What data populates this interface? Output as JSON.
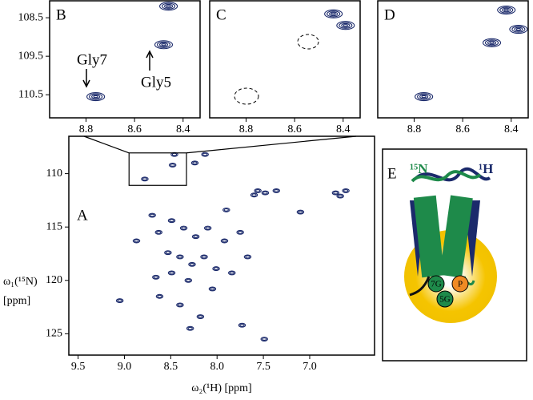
{
  "chart_data": [
    {
      "type": "scatter",
      "label": "A",
      "color": "#1b2a6b",
      "xlabel": "ω₂(¹H) [ppm]",
      "ylabel": [
        "ω₁(¹⁵N)",
        "[ppm]"
      ],
      "xlim": [
        9.6,
        6.3
      ],
      "ylim": [
        106.5,
        127.0
      ],
      "xticks": [
        9.5,
        {
          "value": 9,
          "label": "9.0"
        },
        8.5,
        {
          "value": 8,
          "label": "8.0"
        },
        7.5,
        {
          "value": 7,
          "label": "7.0"
        }
      ],
      "yticks": [
        110,
        115,
        120,
        125
      ],
      "x": [
        8.78,
        8.48,
        8.46,
        8.24,
        8.13,
        7.56,
        7.48,
        7.36,
        7.6,
        6.72,
        6.61,
        6.67,
        7.1,
        8.63,
        8.49,
        8.36,
        8.23,
        8.1,
        7.92,
        7.75,
        8.53,
        8.4,
        8.27,
        8.14,
        8.01,
        8.66,
        8.49,
        8.31,
        8.05,
        8.62,
        9.05,
        8.4,
        8.18,
        7.73,
        7.49,
        8.29,
        7.9,
        8.7,
        8.87,
        7.84,
        7.67
      ],
      "y": [
        110.5,
        109.2,
        108.2,
        109.0,
        108.2,
        111.6,
        111.8,
        111.6,
        112.0,
        111.8,
        111.6,
        112.1,
        113.6,
        115.5,
        114.4,
        115.1,
        115.9,
        115.1,
        116.3,
        115.5,
        117.4,
        117.8,
        118.5,
        117.8,
        118.9,
        119.7,
        119.3,
        120.0,
        120.8,
        121.5,
        121.9,
        122.3,
        123.4,
        124.2,
        125.5,
        124.5,
        113.4,
        113.9,
        116.3,
        119.3,
        117.8
      ]
    },
    {
      "type": "scatter",
      "label": "B",
      "color": "#1b2a6b",
      "xlim": [
        8.95,
        8.33
      ],
      "ylim": [
        108.06,
        111.1
      ],
      "xticks": [
        8.8,
        8.6,
        8.4
      ],
      "yticks": [
        108.5,
        109.5,
        110.5
      ],
      "x": [
        8.46,
        8.48,
        8.76
      ],
      "y": [
        108.2,
        109.2,
        110.55
      ],
      "annotations": [
        "Gly7",
        "Gly5"
      ]
    },
    {
      "type": "scatter",
      "label": "C",
      "color": "#1b2a6b",
      "xlim": [
        8.95,
        8.33
      ],
      "ylim": [
        108.06,
        111.1
      ],
      "xticks": [
        8.8,
        8.6,
        8.4
      ],
      "x": [
        8.44,
        8.39
      ],
      "y": [
        108.4,
        108.7
      ]
    },
    {
      "type": "scatter",
      "label": "D",
      "color": "#1b2a6b",
      "xlim": [
        8.95,
        8.33
      ],
      "ylim": [
        108.06,
        111.1
      ],
      "xticks": [
        8.8,
        8.6,
        8.4
      ],
      "x": [
        8.42,
        8.48,
        8.37,
        8.76
      ],
      "y": [
        108.3,
        109.15,
        108.8,
        110.55
      ]
    }
  ],
  "diagram": {
    "label": "E",
    "n_label": "¹⁵N",
    "h_label": "¹H",
    "residues": [
      "7G",
      "P",
      "5G"
    ]
  }
}
